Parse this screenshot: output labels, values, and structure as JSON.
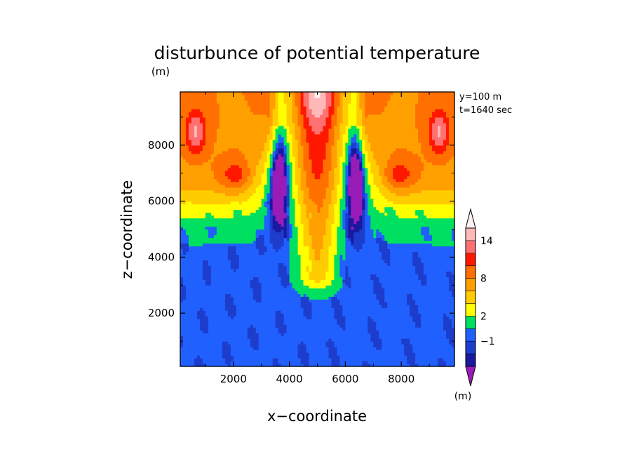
{
  "chart_data": {
    "type": "heatmap",
    "title": "disturbunce of potential temperature",
    "title_unit": "(m)",
    "xlabel": "x−coordinate",
    "ylabel": "z−coordinate",
    "xlim": [
      100,
      9900
    ],
    "ylim": [
      100,
      9900
    ],
    "x_ticks": [
      2000,
      4000,
      6000,
      8000
    ],
    "y_ticks": [
      2000,
      4000,
      6000,
      8000
    ],
    "x_tick_labels": [
      "2000",
      "4000",
      "6000",
      "8000"
    ],
    "y_tick_labels": [
      "2000",
      "4000",
      "6000",
      "8000"
    ],
    "annotations": [
      "y=100 m",
      "t=1640 sec"
    ],
    "colorbar": {
      "levels": [
        -3,
        -2,
        -1,
        0,
        2,
        4,
        6,
        8,
        10,
        12,
        14,
        16
      ],
      "labeled_levels": [
        "14",
        "8",
        "2",
        "−1"
      ],
      "colors": [
        "#9a1cb8",
        "#1919a0",
        "#1d3dcc",
        "#2060ff",
        "#00e060",
        "#ffff00",
        "#ffcc00",
        "#ffa000",
        "#ff7000",
        "#ff1800",
        "#ff7070",
        "#ffb8b8",
        "#fff0f0"
      ],
      "unit": "(m)"
    },
    "field": {
      "description_values": {
        "background": -0.5,
        "central_plume_axis_x": 5000,
        "central_plume_bottom_z": 2900,
        "side_vortices_center_x": [
          2100,
          7900
        ],
        "side_vortices_center_z": 6900,
        "top_layer_z_min": 6000,
        "max_value_near": [
          [
            650,
            8500
          ],
          [
            9350,
            8500
          ]
        ]
      }
    }
  }
}
